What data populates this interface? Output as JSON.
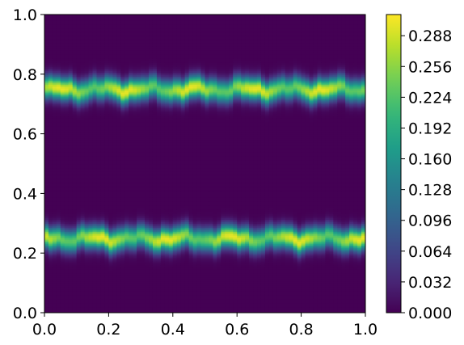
{
  "chart_data": {
    "type": "heatmap",
    "title": "",
    "xlabel": "",
    "ylabel": "",
    "xlim": [
      0.0,
      1.0
    ],
    "ylim": [
      0.0,
      1.0
    ],
    "x_ticks": [
      "0.0",
      "0.2",
      "0.4",
      "0.6",
      "0.8",
      "1.0"
    ],
    "y_ticks": [
      "0.0",
      "0.2",
      "0.4",
      "0.6",
      "0.8",
      "1.0"
    ],
    "grid": false,
    "colormap": "viridis",
    "colorbar": {
      "vmin": 0.0,
      "vmax": 0.31,
      "ticks": [
        "0.000",
        "0.032",
        "0.064",
        "0.096",
        "0.128",
        "0.160",
        "0.192",
        "0.224",
        "0.256",
        "0.288"
      ]
    },
    "bands": [
      {
        "y_center": 0.75,
        "peak": 0.3,
        "width": 0.026
      },
      {
        "y_center": 0.25,
        "peak": 0.3,
        "width": 0.026
      }
    ]
  }
}
